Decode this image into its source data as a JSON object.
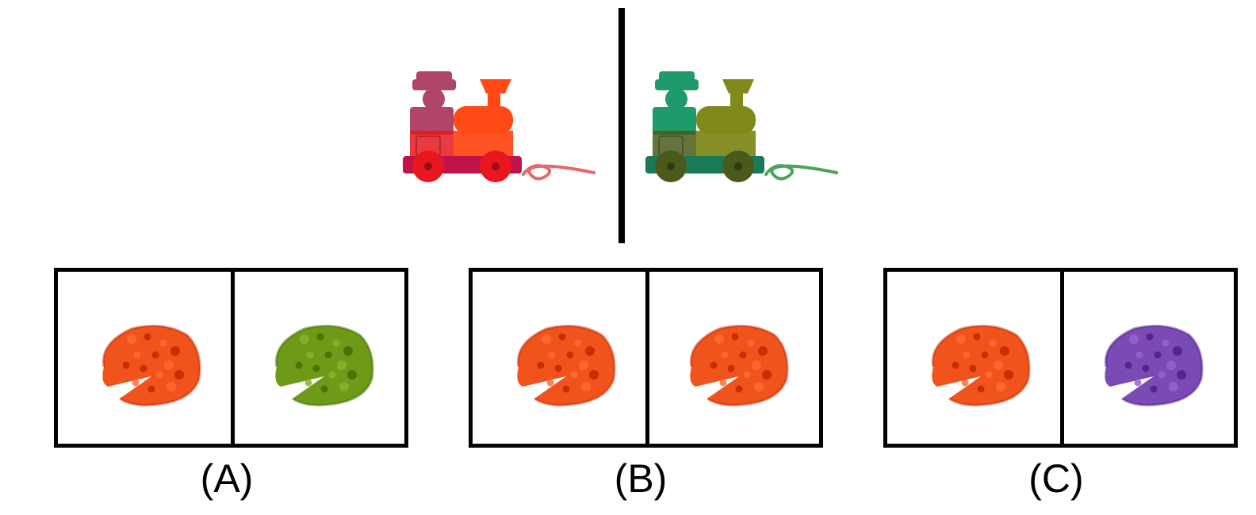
{
  "example": {
    "left_train": {
      "icon": "toy-train-red",
      "colors": {
        "cab": "#b0446b",
        "body": "#ff4a17",
        "base": "#c0134a",
        "wheels": "#e8161e",
        "rope": "#e46a6a"
      }
    },
    "right_train": {
      "icon": "toy-train-green",
      "colors": {
        "cab": "#1f9a6a",
        "body": "#7f8a1a",
        "base": "#1a7a55",
        "wheels": "#4a5a1a",
        "rope": "#4aa55a"
      }
    }
  },
  "options": [
    {
      "label": "(A)",
      "left_pizza_color": "#f0531c",
      "right_pizza_color": "#6e9a18"
    },
    {
      "label": "(B)",
      "left_pizza_color": "#f0531c",
      "right_pizza_color": "#f0531c"
    },
    {
      "label": "(C)",
      "left_pizza_color": "#f0531c",
      "right_pizza_color": "#7a4ab5"
    }
  ]
}
